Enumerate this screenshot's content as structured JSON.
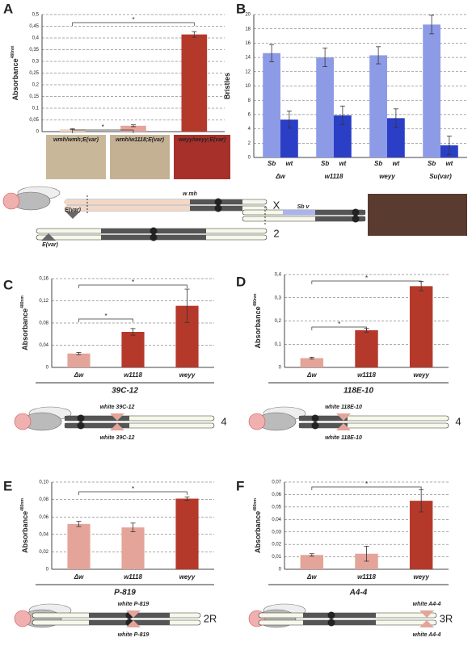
{
  "chart_data": [
    {
      "type": "bar",
      "panel": "A",
      "ylabel": "Absorbance",
      "ylabel_sup": "480nm",
      "categories": [
        "wmh/wmh;E(var)",
        "wmh/w1118;E(var)",
        "weyy/weyy;E(var)"
      ],
      "values": [
        0.01,
        0.025,
        0.415
      ],
      "errors": [
        0.002,
        0.004,
        0.012
      ],
      "colors": [
        "#f3d7c6",
        "#e4a49a",
        "#b5392b"
      ],
      "ylim": [
        0,
        0.5
      ],
      "yticks": [
        0,
        {
          "value": 0.05,
          "label": "0,05"
        },
        {
          "value": 0.1,
          "label": "0,1"
        },
        {
          "value": 0.15,
          "label": "0,15"
        },
        {
          "value": 0.2,
          "label": "0,2"
        },
        {
          "value": 0.25,
          "label": "0,25"
        },
        {
          "value": 0.3,
          "label": "0,3"
        },
        {
          "value": 0.35,
          "label": "0,35"
        },
        {
          "value": 0.4,
          "label": "0,4"
        },
        {
          "value": 0.45,
          "label": "0,45"
        },
        {
          "value": 0.5,
          "label": "0,5"
        }
      ],
      "annotations": [
        "*",
        "*"
      ],
      "grid": true
    },
    {
      "type": "bar",
      "panel": "B",
      "ylabel": "Bristles",
      "categories": [
        "Δw",
        "w1118",
        "weyy",
        "Su(var)"
      ],
      "series": [
        {
          "name": "Sb",
          "color": "#8d9be6",
          "values": [
            14.6,
            14,
            14.3,
            18.6
          ],
          "errors": [
            1.2,
            1.3,
            1.2,
            1.3
          ]
        },
        {
          "name": "wt",
          "color": "#2b3fc6",
          "values": [
            5.3,
            5.9,
            5.5,
            1.7
          ],
          "errors": [
            1.2,
            1.3,
            1.3,
            1.3
          ]
        }
      ],
      "ylim": [
        0,
        20
      ],
      "yticks": [
        0,
        2,
        4,
        6,
        8,
        10,
        12,
        14,
        16,
        18,
        20
      ],
      "grid": true
    },
    {
      "type": "bar",
      "panel": "C",
      "ylabel": "Absorbance",
      "ylabel_sup": "480nm",
      "xlabel": "39C-12",
      "categories": [
        "Δw",
        "w1118",
        "weyy"
      ],
      "values": [
        0.025,
        0.064,
        0.111
      ],
      "errors": [
        0.002,
        0.006,
        0.03
      ],
      "colors": [
        "#e4a49a",
        "#b5392b",
        "#b5392b"
      ],
      "ylim": [
        0,
        0.16
      ],
      "yticks": [
        0,
        {
          "value": 0.04,
          "label": "0,04"
        },
        {
          "value": 0.08,
          "label": "0,08"
        },
        {
          "value": 0.12,
          "label": "0,12"
        },
        {
          "value": 0.16,
          "label": "0,16"
        }
      ],
      "annotations": [
        "*",
        "*"
      ],
      "grid": true
    },
    {
      "type": "bar",
      "panel": "D",
      "ylabel": "Absorbance",
      "ylabel_sup": "480nm",
      "xlabel": "118E-10",
      "categories": [
        "Δw",
        "w1118",
        "weyy"
      ],
      "values": [
        0.04,
        0.16,
        0.35
      ],
      "errors": [
        0.004,
        0.008,
        0.02
      ],
      "colors": [
        "#e4a49a",
        "#b5392b",
        "#b5392b"
      ],
      "ylim": [
        0,
        0.4
      ],
      "yticks": [
        0,
        {
          "value": 0.1,
          "label": "0,1"
        },
        {
          "value": 0.2,
          "label": "0,2"
        },
        {
          "value": 0.3,
          "label": "0,3"
        },
        {
          "value": 0.4,
          "label": "0,4"
        }
      ],
      "annotations": [
        "*",
        "*"
      ],
      "grid": true
    },
    {
      "type": "bar",
      "panel": "E",
      "ylabel": "Absorbance",
      "ylabel_sup": "480nm",
      "xlabel": "P-819",
      "categories": [
        "Δw",
        "w1118",
        "weyy"
      ],
      "values": [
        0.052,
        0.048,
        0.081
      ],
      "errors": [
        0.003,
        0.005,
        0.002
      ],
      "colors": [
        "#e4a49a",
        "#e4a49a",
        "#b5392b"
      ],
      "ylim": [
        0,
        0.1
      ],
      "yticks": [
        0,
        {
          "value": 0.02,
          "label": "0,02"
        },
        {
          "value": 0.04,
          "label": "0,04"
        },
        {
          "value": 0.06,
          "label": "0,06"
        },
        {
          "value": 0.08,
          "label": "0,08"
        },
        {
          "value": 0.1,
          "label": "0,10"
        }
      ],
      "annotations": [
        "*"
      ],
      "grid": true
    },
    {
      "type": "bar",
      "panel": "F",
      "ylabel": "Absorbance",
      "ylabel_sup": "480nm",
      "xlabel": "A4-4",
      "categories": [
        "Δw",
        "w1118",
        "weyy"
      ],
      "values": [
        0.0115,
        0.0125,
        0.055
      ],
      "errors": [
        0.001,
        0.006,
        0.009
      ],
      "colors": [
        "#e4a49a",
        "#e4a49a",
        "#b5392b"
      ],
      "ylim": [
        0,
        0.07
      ],
      "yticks": [
        0,
        {
          "value": 0.01,
          "label": "0,01"
        },
        {
          "value": 0.02,
          "label": "0,02"
        },
        {
          "value": 0.03,
          "label": "0,03"
        },
        {
          "value": 0.04,
          "label": "0,04"
        },
        {
          "value": 0.05,
          "label": "0,05"
        },
        {
          "value": 0.06,
          "label": "0,06"
        },
        {
          "value": 0.07,
          "label": "0,07"
        }
      ],
      "annotations": [
        "*"
      ],
      "grid": true
    }
  ],
  "diagrams": [
    {
      "labels": [
        "w mh",
        "X",
        "E(var)",
        "E(var)",
        "2"
      ]
    },
    {
      "labels": [
        "Sb v"
      ]
    },
    {
      "labels": [
        "white 39C-12",
        "white 39C-12",
        "4"
      ]
    },
    {
      "labels": [
        "white 118E-10",
        "white 118E-10",
        "4"
      ]
    },
    {
      "labels": [
        "white P-819",
        "white P-819",
        "2R"
      ]
    },
    {
      "labels": [
        "white A4-4",
        "white A4-4",
        "3R"
      ]
    }
  ]
}
